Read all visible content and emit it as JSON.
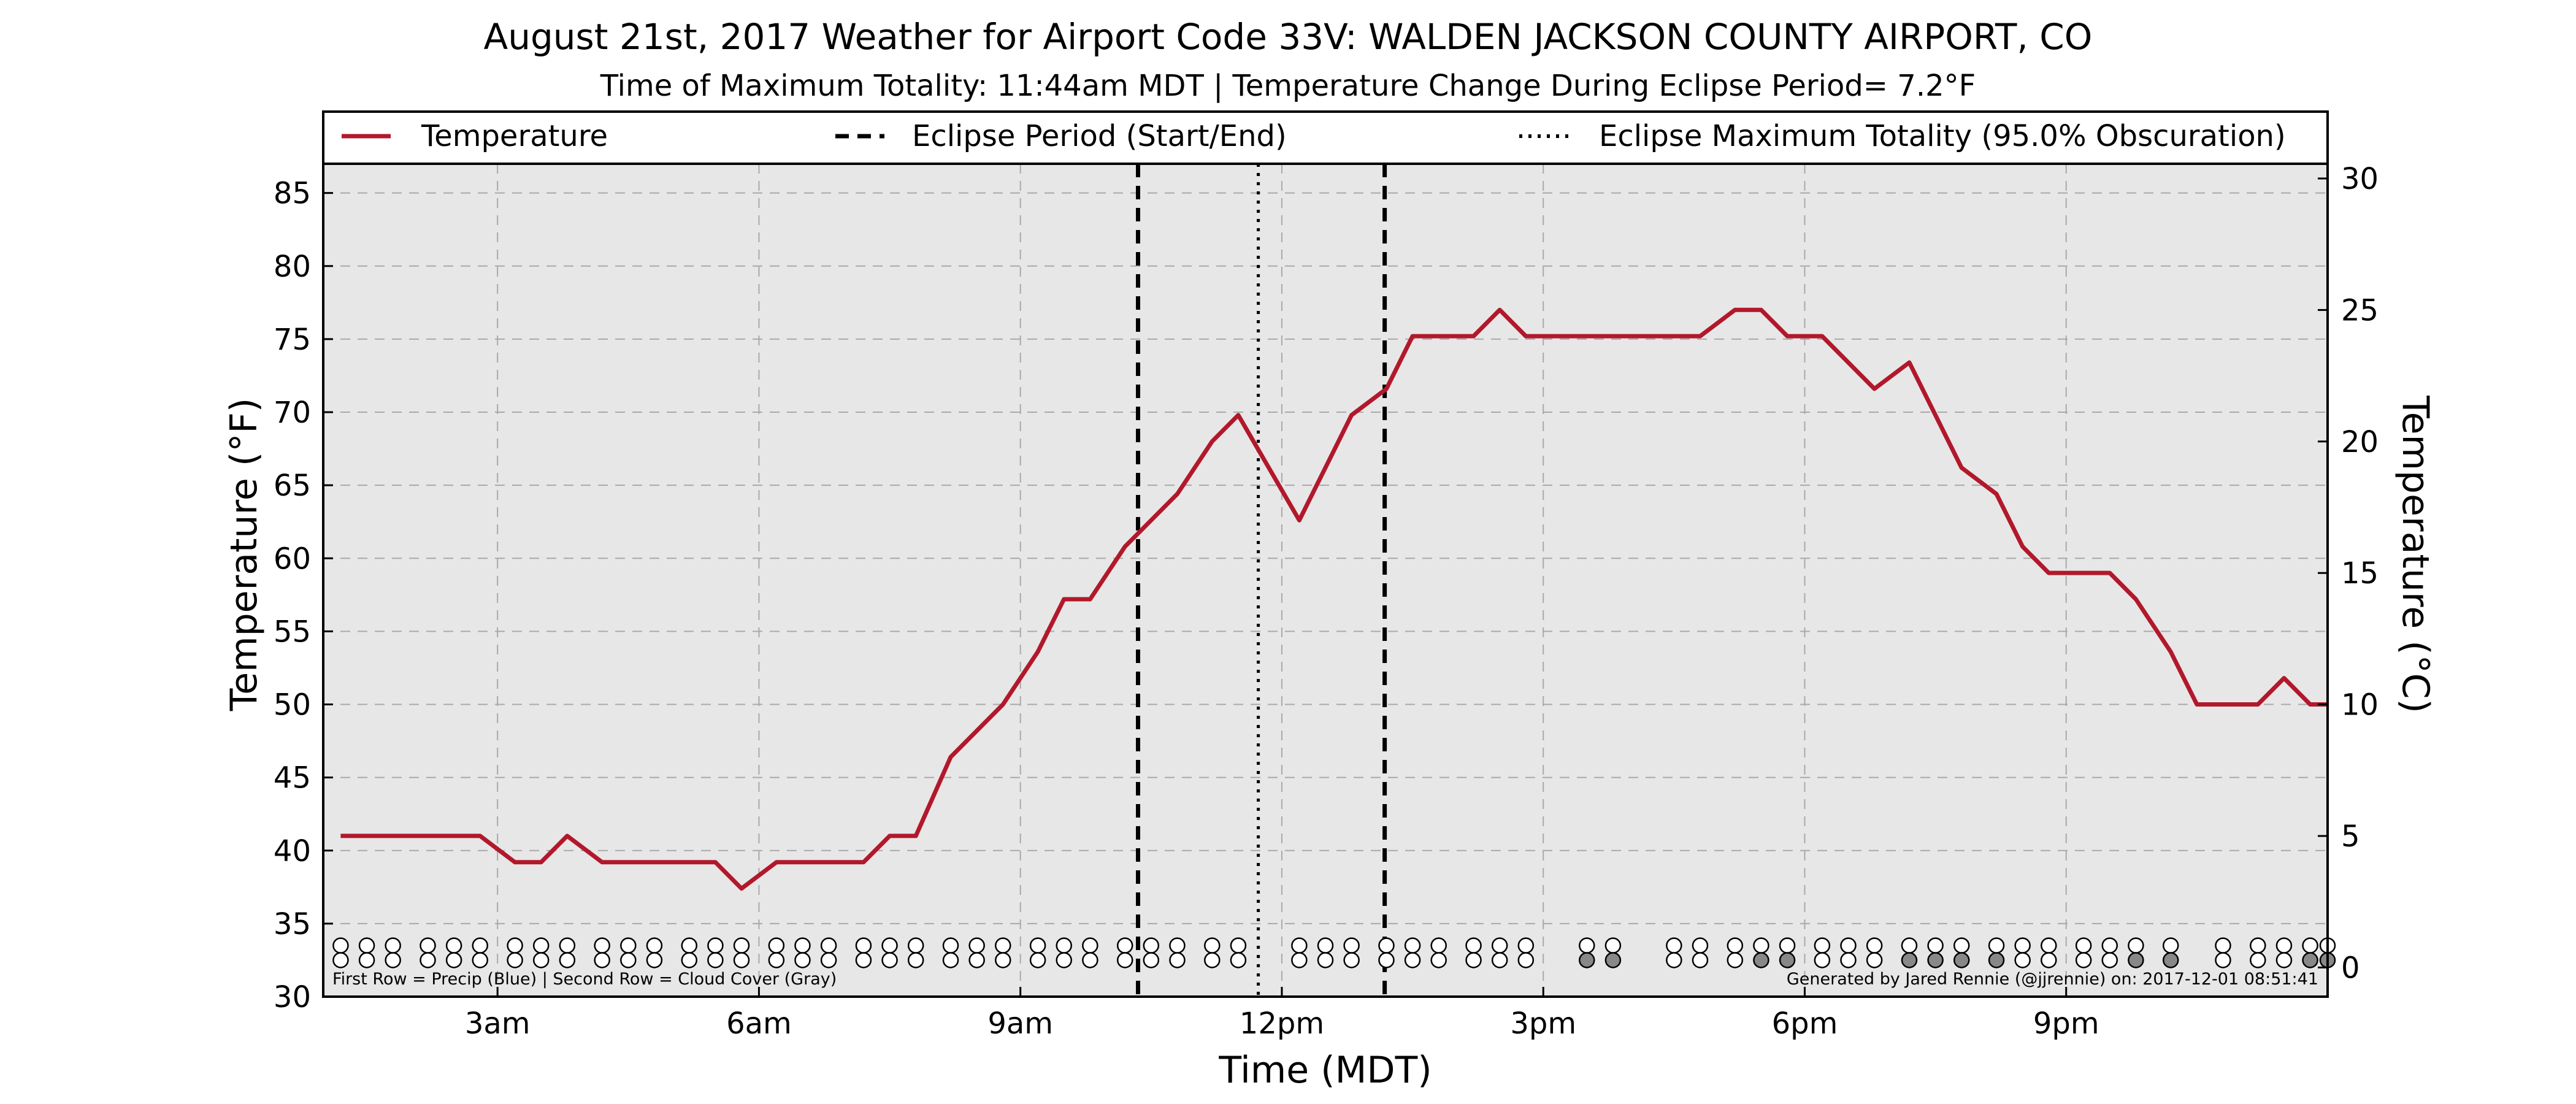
{
  "chart_data": {
    "type": "line",
    "title": "August 21st, 2017 Weather for Airport Code 33V: WALDEN JACKSON COUNTY AIRPORT, CO",
    "subtitle": "Time of Maximum Totality: 11:44am MDT | Temperature Change During Eclipse Period= 7.2$^\\circ$F",
    "subtitle_display": "Time of Maximum Totality: 11:44am MDT | Temperature Change During Eclipse Period= 7.2°F",
    "xlabel": "Time (MDT)",
    "ylabel": "Temperature (°F)",
    "ylabel_right": "Temperature (°C)",
    "xlim": [
      1,
      24
    ],
    "ylim": [
      30,
      87
    ],
    "ylim_right": [
      -1.11,
      30.56
    ],
    "x_ticks": [
      {
        "value": 3,
        "label": "3am"
      },
      {
        "value": 6,
        "label": "6am"
      },
      {
        "value": 9,
        "label": "9am"
      },
      {
        "value": 12,
        "label": "12pm"
      },
      {
        "value": 15,
        "label": "3pm"
      },
      {
        "value": 18,
        "label": "6pm"
      },
      {
        "value": 21,
        "label": "9pm"
      }
    ],
    "y_ticks": [
      30,
      35,
      40,
      45,
      50,
      55,
      60,
      65,
      70,
      75,
      80,
      85
    ],
    "y_ticks_right": [
      0,
      5,
      10,
      15,
      20,
      25,
      30
    ],
    "grid": true,
    "legend_position": "top",
    "legend": [
      {
        "label": "Temperature",
        "style": "solid"
      },
      {
        "label": "Eclipse Period (Start/End)",
        "style": "dashed"
      },
      {
        "label": "Eclipse Maximum Totality (95.0% Obscuration)",
        "style": "dotted"
      }
    ],
    "series": [
      {
        "name": "Temperature",
        "color": "#b2182b",
        "points": [
          [
            1.2,
            41
          ],
          [
            1.5,
            41
          ],
          [
            1.8,
            41
          ],
          [
            2.2,
            41
          ],
          [
            2.5,
            41
          ],
          [
            2.8,
            41
          ],
          [
            3.2,
            39.2
          ],
          [
            3.5,
            39.2
          ],
          [
            3.8,
            41
          ],
          [
            4.2,
            39.2
          ],
          [
            4.5,
            39.2
          ],
          [
            4.8,
            39.2
          ],
          [
            5.2,
            39.2
          ],
          [
            5.5,
            39.2
          ],
          [
            5.8,
            37.4
          ],
          [
            6.2,
            39.2
          ],
          [
            6.5,
            39.2
          ],
          [
            6.8,
            39.2
          ],
          [
            7.2,
            39.2
          ],
          [
            7.5,
            41
          ],
          [
            7.8,
            41
          ],
          [
            8.2,
            46.4
          ],
          [
            8.5,
            48.2
          ],
          [
            8.8,
            50
          ],
          [
            9.2,
            53.6
          ],
          [
            9.5,
            57.2
          ],
          [
            9.8,
            57.2
          ],
          [
            10.2,
            60.8
          ],
          [
            10.5,
            62.6
          ],
          [
            10.8,
            64.4
          ],
          [
            11.2,
            68
          ],
          [
            11.5,
            69.8
          ],
          [
            12.2,
            62.6
          ],
          [
            12.8,
            69.8
          ],
          [
            13.2,
            71.6
          ],
          [
            13.5,
            75.2
          ],
          [
            13.8,
            75.2
          ],
          [
            14.2,
            75.2
          ],
          [
            14.5,
            77
          ],
          [
            14.8,
            75.2
          ],
          [
            15.2,
            75.2
          ],
          [
            15.5,
            75.2
          ],
          [
            15.8,
            75.2
          ],
          [
            16.2,
            75.2
          ],
          [
            16.5,
            75.2
          ],
          [
            16.8,
            75.2
          ],
          [
            17.2,
            77
          ],
          [
            17.5,
            77
          ],
          [
            17.8,
            75.2
          ],
          [
            18.2,
            75.2
          ],
          [
            18.5,
            73.4
          ],
          [
            18.8,
            71.6
          ],
          [
            19.2,
            73.4
          ],
          [
            19.5,
            69.8
          ],
          [
            19.8,
            66.2
          ],
          [
            20.2,
            64.4
          ],
          [
            20.5,
            60.8
          ],
          [
            20.8,
            59
          ],
          [
            21.2,
            59
          ],
          [
            21.5,
            59
          ],
          [
            21.8,
            57.2
          ],
          [
            22.2,
            53.6
          ],
          [
            22.5,
            50
          ],
          [
            22.8,
            50
          ],
          [
            23.2,
            50
          ],
          [
            23.5,
            51.8
          ],
          [
            23.8,
            50
          ],
          [
            24,
            50
          ]
        ]
      }
    ],
    "eclipse_period": {
      "start": 10.35,
      "end": 13.18
    },
    "eclipse_max": 11.73,
    "marker_rows": {
      "times": [
        1.2,
        1.5,
        1.8,
        2.2,
        2.5,
        2.8,
        3.2,
        3.5,
        3.8,
        4.2,
        4.5,
        4.8,
        5.2,
        5.5,
        5.8,
        6.2,
        6.5,
        6.8,
        7.2,
        7.5,
        7.8,
        8.2,
        8.5,
        8.8,
        9.2,
        9.5,
        9.8,
        10.2,
        10.5,
        10.8,
        11.2,
        11.5,
        11.8,
        12.2,
        12.5,
        12.8,
        13.2,
        13.5,
        13.8,
        14.2,
        14.5,
        14.8,
        15.2,
        15.5,
        15.8,
        16.2,
        16.5,
        16.8,
        17.2,
        17.5,
        17.8,
        18.2,
        18.5,
        18.8,
        19.2,
        19.5,
        19.8,
        20.2,
        20.5,
        20.8,
        21.2,
        21.5,
        21.8,
        22.2,
        22.5,
        22.8,
        23.2,
        23.5,
        23.8,
        24.0
      ],
      "present": [
        1,
        1,
        1,
        1,
        1,
        1,
        1,
        1,
        1,
        1,
        1,
        1,
        1,
        1,
        1,
        1,
        1,
        1,
        1,
        1,
        1,
        1,
        1,
        1,
        1,
        1,
        1,
        1,
        1,
        1,
        1,
        1,
        0,
        1,
        1,
        1,
        1,
        1,
        1,
        1,
        1,
        1,
        0,
        1,
        1,
        0,
        1,
        1,
        1,
        1,
        1,
        1,
        1,
        1,
        1,
        1,
        1,
        1,
        1,
        1,
        1,
        1,
        1,
        1,
        0,
        1,
        1,
        1,
        1,
        1
      ],
      "precip": [
        0,
        0,
        0,
        0,
        0,
        0,
        0,
        0,
        0,
        0,
        0,
        0,
        0,
        0,
        0,
        0,
        0,
        0,
        0,
        0,
        0,
        0,
        0,
        0,
        0,
        0,
        0,
        0,
        0,
        0,
        0,
        0,
        0,
        0,
        0,
        0,
        0,
        0,
        0,
        0,
        0,
        0,
        0,
        0,
        0,
        0,
        0,
        0,
        0,
        0,
        0,
        0,
        0,
        0,
        0,
        0,
        0,
        0,
        0,
        0,
        0,
        0,
        0,
        0,
        0,
        0,
        0,
        0,
        0,
        0
      ],
      "cloud": [
        0,
        0,
        0,
        0,
        0,
        0,
        0,
        0,
        0,
        0,
        0,
        0,
        0,
        0,
        0,
        0,
        0,
        0,
        0,
        0,
        0,
        0,
        0,
        0,
        0,
        0,
        0,
        0,
        0,
        0,
        0,
        0,
        0,
        0,
        0,
        0,
        0,
        0,
        0,
        0,
        0,
        0,
        0,
        1,
        1,
        0,
        0,
        0,
        0,
        1,
        1,
        0,
        0,
        0,
        1,
        1,
        1,
        1,
        0,
        0,
        0,
        0,
        1,
        1,
        0,
        0,
        0,
        0,
        1,
        1
      ],
      "precip_color": "#4a90d9",
      "cloud_color": "#888888"
    },
    "footnote_left": "First Row = Precip (Blue) | Second Row = Cloud Cover (Gray)",
    "footnote_right": "Generated by Jared Rennie (@jjrennie) on: 2017-12-01 08:51:41",
    "colors": {
      "plot_background": "#e7e7e7",
      "line": "#b2182b",
      "grid": "#a9a9a9"
    }
  }
}
